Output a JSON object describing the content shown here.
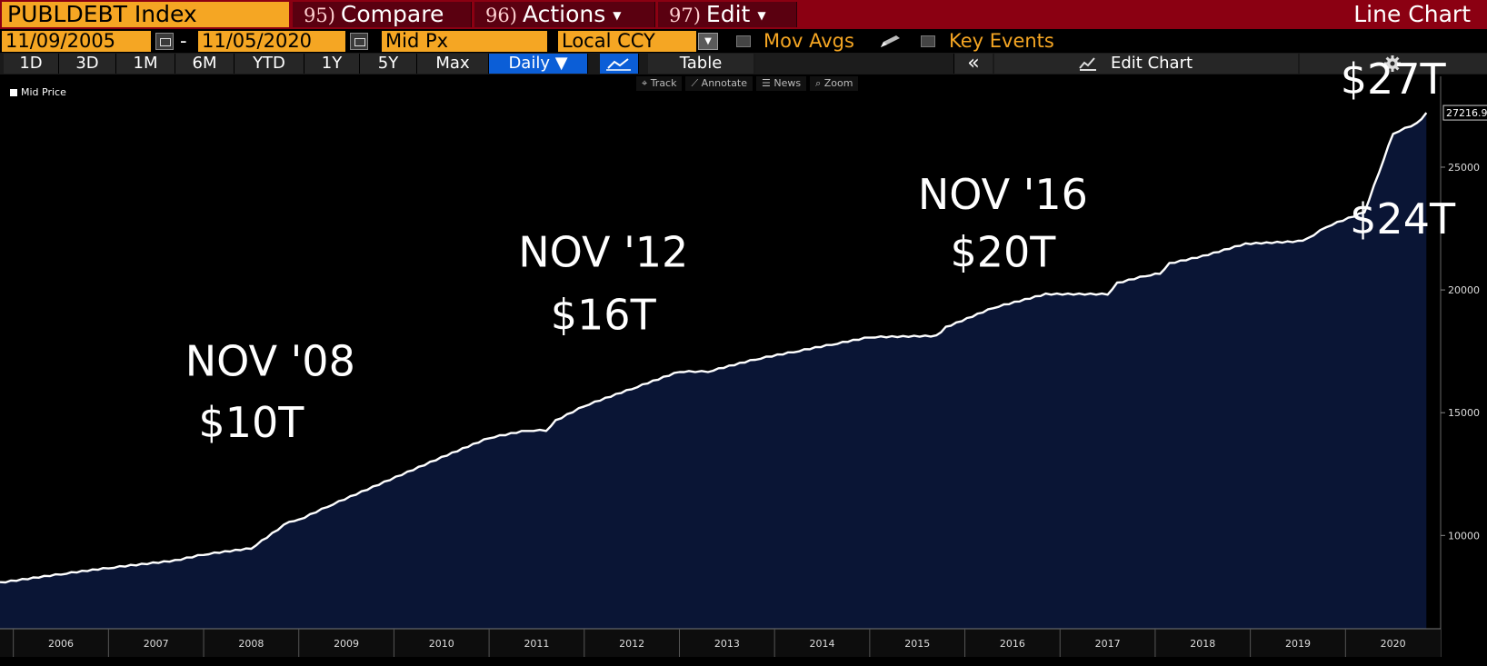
{
  "header": {
    "ticker": "PUBLDEBT Index",
    "menu": [
      {
        "num": "95)",
        "label": "Compare",
        "caret": false
      },
      {
        "num": "96)",
        "label": "Actions",
        "caret": true
      },
      {
        "num": "97)",
        "label": "Edit",
        "caret": true
      }
    ],
    "chart_kind": "Line Chart"
  },
  "range": {
    "start": "11/09/2005",
    "sep": "-",
    "end": "11/05/2020",
    "field": "Mid Px",
    "currency": "Local CCY",
    "mov_avgs": "Mov Avgs",
    "key_events": "Key Events"
  },
  "toolbar": {
    "periods": [
      "1D",
      "3D",
      "1M",
      "6M",
      "YTD",
      "1Y",
      "5Y",
      "Max"
    ],
    "frequency": "Daily ▼",
    "table": "Table",
    "collapse": "«",
    "edit_chart": "Edit Chart"
  },
  "subtools": [
    "⌖ Track",
    "⟋ Annotate",
    "☰ News",
    "⌕ Zoom"
  ],
  "colors": {
    "title_bar": "#8b0012",
    "accent_orange": "#f5a623",
    "area_fill": "#0a1535",
    "line": "#ffffff",
    "active_blue": "#0b5ed7"
  },
  "icons": {
    "calendar": "calendar-icon",
    "pencil": "pencil-icon",
    "line_chart": "line-chart-icon",
    "edit_chart": "edit-chart-icon",
    "settings": "gear-icon"
  },
  "chart_data": {
    "type": "area",
    "series": [
      {
        "name": "Mid Price",
        "points": [
          [
            2005.86,
            8100
          ],
          [
            2006.5,
            8450
          ],
          [
            2007.0,
            8700
          ],
          [
            2007.7,
            9000
          ],
          [
            2008.0,
            9250
          ],
          [
            2008.5,
            9500
          ],
          [
            2008.72,
            10100
          ],
          [
            2008.9,
            10600
          ],
          [
            2009.0,
            10650
          ],
          [
            2009.3,
            11200
          ],
          [
            2009.9,
            12200
          ],
          [
            2010.5,
            13200
          ],
          [
            2011.0,
            14000
          ],
          [
            2011.4,
            14300
          ],
          [
            2011.6,
            14300
          ],
          [
            2011.7,
            14700
          ],
          [
            2012.0,
            15300
          ],
          [
            2012.5,
            16000
          ],
          [
            2013.0,
            16700
          ],
          [
            2013.1,
            16700
          ],
          [
            2013.3,
            16700
          ],
          [
            2013.8,
            17200
          ],
          [
            2014.2,
            17500
          ],
          [
            2014.6,
            17800
          ],
          [
            2015.0,
            18100
          ],
          [
            2015.7,
            18150
          ],
          [
            2015.8,
            18500
          ],
          [
            2016.3,
            19300
          ],
          [
            2016.85,
            19850
          ],
          [
            2017.2,
            19850
          ],
          [
            2017.5,
            19850
          ],
          [
            2017.6,
            20300
          ],
          [
            2017.9,
            20600
          ],
          [
            2018.05,
            20700
          ],
          [
            2018.15,
            21100
          ],
          [
            2018.5,
            21400
          ],
          [
            2018.95,
            21900
          ],
          [
            2019.5,
            22000
          ],
          [
            2019.6,
            22100
          ],
          [
            2019.8,
            22600
          ],
          [
            2020.2,
            23200
          ],
          [
            2020.35,
            24800
          ],
          [
            2020.5,
            26400
          ],
          [
            2020.75,
            26800
          ],
          [
            2020.85,
            27216.98
          ]
        ]
      }
    ],
    "last_value_label": "27216.98",
    "x_ticks": [
      "2006",
      "2007",
      "2008",
      "2009",
      "2010",
      "2011",
      "2012",
      "2013",
      "2014",
      "2015",
      "2016",
      "2017",
      "2018",
      "2019",
      "2020"
    ],
    "y_ticks": [
      10000,
      15000,
      20000,
      25000
    ],
    "xlim": [
      2005.86,
      2021.0
    ],
    "ylim": [
      6200,
      28700
    ],
    "grid": false,
    "legend": "top-left",
    "annotations": [
      {
        "text": "NOV '08",
        "x": 2008.7,
        "y": 16500
      },
      {
        "text": "$10T",
        "x": 2008.5,
        "y": 14000
      },
      {
        "text": "NOV '12",
        "x": 2012.2,
        "y": 20950
      },
      {
        "text": "$16T",
        "x": 2012.2,
        "y": 18400
      },
      {
        "text": "NOV '16",
        "x": 2016.4,
        "y": 23300
      },
      {
        "text": "$20T",
        "x": 2016.4,
        "y": 20950
      },
      {
        "text": "$27T",
        "x": 2020.5,
        "y": 28000
      },
      {
        "text": "$24T",
        "x": 2020.6,
        "y": 22300
      }
    ]
  }
}
